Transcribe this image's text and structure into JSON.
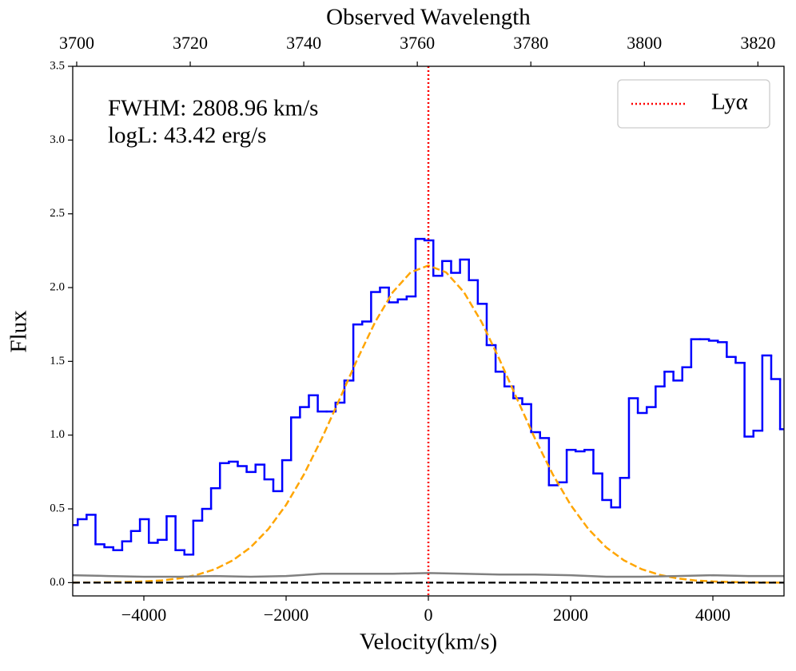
{
  "chart_data": {
    "type": "step",
    "xlabel": "Velocity(km/s)",
    "ylabel": "Flux",
    "x2label": "Observed Wavelength",
    "xlim": [
      -5000,
      5000
    ],
    "ylim": [
      -0.09,
      3.5
    ],
    "x2lim": [
      3699.3,
      3824.6
    ],
    "xticks": [
      {
        "value": -4000,
        "label": "−4000"
      },
      {
        "value": -2000,
        "label": "−2000"
      },
      0,
      2000,
      4000
    ],
    "x2ticks": [
      3700,
      3720,
      3740,
      3760,
      3780,
      3800,
      3820
    ],
    "yticks": [
      {
        "value": 0,
        "label": "0.0"
      },
      0.5,
      {
        "value": 1,
        "label": "1.0"
      },
      1.5,
      {
        "value": 2,
        "label": "2.0"
      },
      2.5,
      {
        "value": 3,
        "label": "3.0"
      },
      3.5
    ],
    "grid": false,
    "legend": "upper right",
    "annotations": [
      "FWHM: 2808.96 km/s",
      "logL: 43.42 erg/s"
    ],
    "series": [
      {
        "type": "step",
        "color": "#0000ff",
        "bins": [
          -5000,
          -4930,
          -4805,
          -4680,
          -4555,
          -4430,
          -4305,
          -4180,
          -4055,
          -3930,
          -3805,
          -3680,
          -3555,
          -3430,
          -3305,
          -3180,
          -3055,
          -2930,
          -2805,
          -2680,
          -2555,
          -2430,
          -2305,
          -2180,
          -2055,
          -1930,
          -1805,
          -1680,
          -1555,
          -1430,
          -1305,
          -1180,
          -1055,
          -930,
          -805,
          -680,
          -555,
          -430,
          -305,
          -180,
          -55,
          70,
          195,
          320,
          445,
          570,
          695,
          820,
          945,
          1070,
          1195,
          1320,
          1445,
          1570,
          1695,
          1820,
          1945,
          2070,
          2195,
          2320,
          2445,
          2570,
          2695,
          2820,
          2945,
          3070,
          3195,
          3320,
          3445,
          3570,
          3695,
          3820,
          3945,
          4070,
          4195,
          4320,
          4445,
          4570,
          4695,
          4820,
          4945,
          5000
        ],
        "values": [
          0.39,
          0.43,
          0.46,
          0.26,
          0.24,
          0.22,
          0.28,
          0.35,
          0.43,
          0.27,
          0.29,
          0.45,
          0.22,
          0.19,
          0.42,
          0.5,
          0.64,
          0.81,
          0.82,
          0.79,
          0.75,
          0.8,
          0.7,
          0.62,
          0.83,
          1.12,
          1.19,
          1.27,
          1.16,
          1.16,
          1.22,
          1.37,
          1.75,
          1.77,
          1.97,
          2.0,
          1.9,
          1.92,
          1.94,
          2.33,
          2.32,
          2.08,
          2.18,
          2.1,
          2.19,
          2.05,
          1.89,
          1.61,
          1.43,
          1.33,
          1.25,
          1.21,
          1.02,
          0.98,
          0.66,
          0.68,
          0.9,
          0.89,
          0.9,
          0.74,
          0.56,
          0.51,
          0.71,
          1.25,
          1.15,
          1.19,
          1.33,
          1.43,
          1.37,
          1.46,
          1.65,
          1.65,
          1.64,
          1.63,
          1.53,
          1.49,
          0.99,
          1.03,
          1.54,
          1.38,
          1.04
        ]
      },
      {
        "type": "line",
        "color": "#ffa500",
        "style": "dashed",
        "x": [
          -5000,
          -4750,
          -4500,
          -4250,
          -4000,
          -3750,
          -3500,
          -3250,
          -3000,
          -2750,
          -2500,
          -2250,
          -2000,
          -1750,
          -1500,
          -1250,
          -1000,
          -750,
          -500,
          -250,
          0,
          250,
          500,
          750,
          1000,
          1250,
          1500,
          1750,
          2000,
          2250,
          2500,
          2750,
          3000,
          3250,
          3500,
          3750,
          4000,
          4250,
          4500,
          4750,
          5000
        ],
        "values": [
          0.0,
          0.001,
          0.002,
          0.004,
          0.008,
          0.015,
          0.029,
          0.053,
          0.091,
          0.151,
          0.239,
          0.363,
          0.527,
          0.733,
          0.975,
          1.242,
          1.513,
          1.765,
          1.969,
          2.103,
          2.15,
          2.103,
          1.969,
          1.765,
          1.513,
          1.242,
          0.975,
          0.733,
          0.527,
          0.363,
          0.239,
          0.151,
          0.091,
          0.053,
          0.029,
          0.015,
          0.008,
          0.004,
          0.002,
          0.001,
          0.0
        ]
      },
      {
        "type": "line",
        "color": "#808080",
        "style": "solid",
        "x": [
          -5000,
          -4500,
          -4000,
          -3500,
          -3000,
          -2500,
          -2000,
          -1500,
          -1000,
          -500,
          0,
          500,
          1000,
          1500,
          2000,
          2500,
          3000,
          3500,
          4000,
          4500,
          5000
        ],
        "values": [
          0.05,
          0.045,
          0.04,
          0.04,
          0.045,
          0.04,
          0.045,
          0.06,
          0.06,
          0.06,
          0.065,
          0.06,
          0.055,
          0.055,
          0.05,
          0.04,
          0.04,
          0.045,
          0.05,
          0.045,
          0.045
        ]
      }
    ],
    "hlines": [
      {
        "value": 0,
        "color": "#000000",
        "style": "dashed"
      }
    ],
    "vlines": [
      {
        "name": "Lyα",
        "value": 0,
        "color": "#ff0000",
        "style": "dotted"
      }
    ]
  }
}
